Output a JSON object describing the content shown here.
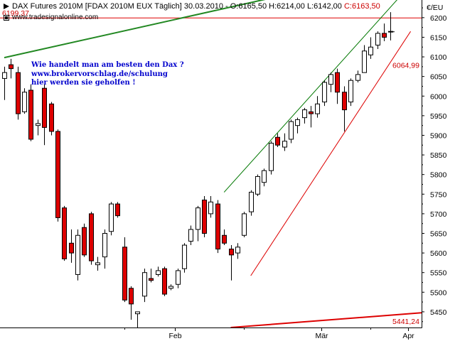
{
  "header": {
    "title": "DAX Futures 2010M [FDAX 2010M EUX  Täglich] 30.03.2010 - O:6165,50 H:6214,00 L:6142,00 ",
    "close": "C:6163,50",
    "url": "www.tradesignalonline.com"
  },
  "annotation": {
    "lines": [
      "Wie handelt man am besten den Dax ?",
      "www.brokervorschlag.de/schulung",
      "hier werden sie geholfen !"
    ]
  },
  "colors": {
    "up_body": "#ffffff",
    "down_body": "#dd0000",
    "candle_outline": "#000000",
    "green_line": "#007700",
    "thick_green_line": "#228822",
    "red_line": "#dd0000",
    "level_text": "#cc0000"
  },
  "chart_data": {
    "type": "candlestick",
    "unit_label": "€/EU",
    "ylim": [
      5410,
      6245
    ],
    "yticks": [
      5450,
      5500,
      5550,
      5600,
      5650,
      5700,
      5750,
      5800,
      5850,
      5900,
      5950,
      6000,
      6050,
      6100,
      6150,
      6200
    ],
    "ytick_labels": [
      "5450",
      "5500",
      "5550",
      "5600",
      "5650",
      "5700",
      "5750",
      "5800",
      "5850",
      "5900",
      "5950",
      "6000",
      "6050",
      "6100",
      "6150",
      "6200"
    ],
    "xlabels": [
      "Feb",
      "Mär",
      "Apr"
    ],
    "levels": [
      {
        "value": 6199.37,
        "label": "6199,37"
      },
      {
        "value": 6064.99,
        "label": "6064,99"
      },
      {
        "value": 5441.24,
        "label": "5441,24"
      }
    ],
    "candles": [
      {
        "o": 6045,
        "h": 6075,
        "l": 5990,
        "c": 6060
      },
      {
        "o": 6080,
        "h": 6095,
        "l": 6045,
        "c": 6070
      },
      {
        "o": 6060,
        "h": 6075,
        "l": 5940,
        "c": 5955
      },
      {
        "o": 5960,
        "h": 6020,
        "l": 5955,
        "c": 6010
      },
      {
        "o": 6015,
        "h": 6030,
        "l": 5885,
        "c": 5890
      },
      {
        "o": 5925,
        "h": 5940,
        "l": 5900,
        "c": 5930
      },
      {
        "o": 6020,
        "h": 6030,
        "l": 5875,
        "c": 5920
      },
      {
        "o": 5980,
        "h": 5985,
        "l": 5900,
        "c": 5910
      },
      {
        "o": 5910,
        "h": 5915,
        "l": 5680,
        "c": 5690
      },
      {
        "o": 5715,
        "h": 5720,
        "l": 5580,
        "c": 5585
      },
      {
        "o": 5625,
        "h": 5660,
        "l": 5575,
        "c": 5600
      },
      {
        "o": 5545,
        "h": 5660,
        "l": 5530,
        "c": 5645
      },
      {
        "o": 5665,
        "h": 5675,
        "l": 5590,
        "c": 5595
      },
      {
        "o": 5700,
        "h": 5705,
        "l": 5570,
        "c": 5580
      },
      {
        "o": 5570,
        "h": 5590,
        "l": 5555,
        "c": 5575
      },
      {
        "o": 5590,
        "h": 5660,
        "l": 5560,
        "c": 5650
      },
      {
        "o": 5655,
        "h": 5730,
        "l": 5645,
        "c": 5725
      },
      {
        "o": 5725,
        "h": 5730,
        "l": 5690,
        "c": 5695
      },
      {
        "o": 5615,
        "h": 5640,
        "l": 5475,
        "c": 5480
      },
      {
        "o": 5510,
        "h": 5515,
        "l": 5430,
        "c": 5470
      },
      {
        "o": 5445,
        "h": 5450,
        "l": 5410,
        "c": 5450
      },
      {
        "o": 5490,
        "h": 5560,
        "l": 5475,
        "c": 5550
      },
      {
        "o": 5535,
        "h": 5560,
        "l": 5525,
        "c": 5530
      },
      {
        "o": 5545,
        "h": 5565,
        "l": 5540,
        "c": 5555
      },
      {
        "o": 5560,
        "h": 5565,
        "l": 5490,
        "c": 5495
      },
      {
        "o": 5510,
        "h": 5520,
        "l": 5505,
        "c": 5515
      },
      {
        "o": 5520,
        "h": 5560,
        "l": 5510,
        "c": 5555
      },
      {
        "o": 5560,
        "h": 5625,
        "l": 5550,
        "c": 5620
      },
      {
        "o": 5630,
        "h": 5670,
        "l": 5620,
        "c": 5660
      },
      {
        "o": 5660,
        "h": 5720,
        "l": 5630,
        "c": 5715
      },
      {
        "o": 5735,
        "h": 5745,
        "l": 5640,
        "c": 5650
      },
      {
        "o": 5700,
        "h": 5745,
        "l": 5690,
        "c": 5730
      },
      {
        "o": 5725,
        "h": 5735,
        "l": 5600,
        "c": 5610
      },
      {
        "o": 5645,
        "h": 5660,
        "l": 5620,
        "c": 5625
      },
      {
        "o": 5610,
        "h": 5620,
        "l": 5530,
        "c": 5595
      },
      {
        "o": 5600,
        "h": 5625,
        "l": 5585,
        "c": 5615
      },
      {
        "o": 5645,
        "h": 5705,
        "l": 5640,
        "c": 5700
      },
      {
        "o": 5705,
        "h": 5760,
        "l": 5695,
        "c": 5755
      },
      {
        "o": 5750,
        "h": 5800,
        "l": 5745,
        "c": 5795
      },
      {
        "o": 5780,
        "h": 5815,
        "l": 5770,
        "c": 5810
      },
      {
        "o": 5810,
        "h": 5885,
        "l": 5800,
        "c": 5880
      },
      {
        "o": 5895,
        "h": 5905,
        "l": 5870,
        "c": 5875
      },
      {
        "o": 5870,
        "h": 5905,
        "l": 5860,
        "c": 5885
      },
      {
        "o": 5890,
        "h": 5940,
        "l": 5880,
        "c": 5935
      },
      {
        "o": 5925,
        "h": 5945,
        "l": 5905,
        "c": 5940
      },
      {
        "o": 5945,
        "h": 5970,
        "l": 5930,
        "c": 5965
      },
      {
        "o": 5960,
        "h": 5975,
        "l": 5920,
        "c": 5955
      },
      {
        "o": 5955,
        "h": 6000,
        "l": 5945,
        "c": 5980
      },
      {
        "o": 5985,
        "h": 6040,
        "l": 5975,
        "c": 6035
      },
      {
        "o": 6030,
        "h": 6060,
        "l": 6010,
        "c": 6055
      },
      {
        "o": 6060,
        "h": 6070,
        "l": 5980,
        "c": 6010
      },
      {
        "o": 6010,
        "h": 6025,
        "l": 5910,
        "c": 5965
      },
      {
        "o": 5985,
        "h": 6045,
        "l": 5975,
        "c": 6040
      },
      {
        "o": 6040,
        "h": 6065,
        "l": 6035,
        "c": 6055
      },
      {
        "o": 6060,
        "h": 6130,
        "l": 6060,
        "c": 6115
      },
      {
        "o": 6105,
        "h": 6150,
        "l": 6095,
        "c": 6125
      },
      {
        "o": 6130,
        "h": 6165,
        "l": 6120,
        "c": 6160
      },
      {
        "o": 6160,
        "h": 6185,
        "l": 6140,
        "c": 6150
      },
      {
        "o": 6165,
        "h": 6214,
        "l": 6142,
        "c": 6164
      }
    ],
    "lines": [
      {
        "name": "",
        "color": "#228822",
        "points": [
          [
            0,
            6098
          ],
          [
            44,
            6265
          ]
        ]
      },
      {
        "name": "",
        "color": "#007700",
        "points": [
          [
            33,
            5755
          ],
          [
            60,
            6265
          ]
        ]
      },
      {
        "name": "",
        "color": "#dd0000",
        "points": [
          [
            37,
            5542
          ],
          [
            61,
            6165
          ]
        ]
      },
      {
        "name": "",
        "color": "#dd0000",
        "points": [
          [
            34,
            5410
          ],
          [
            63,
            5448
          ]
        ]
      }
    ]
  }
}
